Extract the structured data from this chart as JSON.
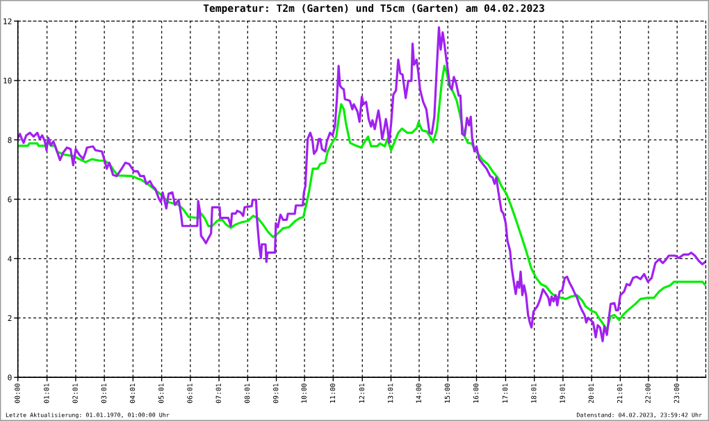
{
  "chart_data": {
    "type": "line",
    "title": "Temperatur: T2m (Garten) und T5cm (Garten) am 04.02.2023",
    "grid": true,
    "marker": "none",
    "line_style": "solid",
    "xlim": [
      0,
      24
    ],
    "ylim": [
      0,
      12
    ],
    "yticks": [
      0,
      2,
      4,
      6,
      8,
      10,
      12
    ],
    "xticks": [
      {
        "value": 0,
        "label": "00:00"
      },
      {
        "value": 1.017,
        "label": "01:01"
      },
      {
        "value": 2.017,
        "label": "02:01"
      },
      {
        "value": 3.017,
        "label": "03:01"
      },
      {
        "value": 4.017,
        "label": "04:01"
      },
      {
        "value": 5.017,
        "label": "05:01"
      },
      {
        "value": 6.017,
        "label": "06:01"
      },
      {
        "value": 7.017,
        "label": "07:01"
      },
      {
        "value": 8.017,
        "label": "08:01"
      },
      {
        "value": 9.017,
        "label": "09:01"
      },
      {
        "value": 10,
        "label": "10:00"
      },
      {
        "value": 11,
        "label": "11:00"
      },
      {
        "value": 12.017,
        "label": "12:01"
      },
      {
        "value": 13.017,
        "label": "13:01"
      },
      {
        "value": 14,
        "label": "14:00"
      },
      {
        "value": 15,
        "label": "15:00"
      },
      {
        "value": 16,
        "label": "16:00"
      },
      {
        "value": 17.017,
        "label": "17:01"
      },
      {
        "value": 18.017,
        "label": "18:01"
      },
      {
        "value": 19.017,
        "label": "19:01"
      },
      {
        "value": 20.017,
        "label": "20:01"
      },
      {
        "value": 21.017,
        "label": "21:01"
      },
      {
        "value": 22,
        "label": "22:00"
      },
      {
        "value": 23,
        "label": "23:00"
      }
    ],
    "annotations": [
      "Letzte Aktualisierung: 01.01.1970, 01:00:00 Uhr",
      "Datenstand: 04.02.2023, 23:59:42 Uhr"
    ],
    "series": [
      {
        "color": "#00ee00",
        "x": [
          0,
          0.35,
          0.4,
          0.68,
          0.72,
          0.95,
          0.98,
          1.1,
          1.15,
          1.3,
          1.37,
          1.63,
          1.97,
          2.15,
          2.36,
          2.58,
          2.84,
          3.01,
          3.19,
          3.36,
          3.49,
          3.97,
          4.1,
          4.31,
          4.57,
          4.74,
          5.0,
          5.26,
          5.61,
          5.78,
          5.96,
          6.3,
          6.39,
          6.52,
          6.65,
          6.78,
          6.95,
          7.13,
          7.26,
          7.43,
          7.6,
          7.82,
          8.03,
          8.21,
          8.38,
          8.55,
          8.73,
          8.9,
          9.03,
          9.25,
          9.46,
          9.68,
          9.85,
          9.96,
          10.07,
          10.16,
          10.29,
          10.46,
          10.55,
          10.72,
          10.81,
          10.94,
          11.02,
          11.11,
          11.19,
          11.28,
          11.37,
          11.45,
          11.59,
          11.76,
          11.98,
          12.11,
          12.22,
          12.32,
          12.54,
          12.63,
          12.8,
          12.89,
          13.02,
          13.15,
          13.27,
          13.4,
          13.58,
          13.75,
          13.92,
          13.98,
          14.1,
          14.27,
          14.49,
          14.62,
          14.7,
          14.79,
          14.88,
          14.96,
          15.05,
          15.18,
          15.31,
          15.44,
          15.57,
          15.7,
          15.83,
          15.96,
          16.09,
          16.22,
          16.39,
          16.56,
          16.74,
          16.87,
          17.04,
          17.21,
          17.39,
          17.56,
          17.73,
          17.91,
          18.08,
          18.25,
          18.43,
          18.6,
          18.77,
          18.95,
          19.12,
          19.29,
          19.51,
          19.68,
          19.81,
          19.98,
          20.16,
          20.29,
          20.42,
          20.55,
          20.68,
          20.81,
          20.98,
          21.11,
          21.28,
          21.54,
          21.72,
          21.98,
          22.19,
          22.37,
          22.54,
          22.76,
          22.89,
          23.62,
          23.88,
          23.97
        ],
        "values": [
          7.8,
          7.8,
          7.88,
          7.88,
          7.8,
          7.8,
          7.88,
          7.88,
          7.8,
          7.8,
          7.6,
          7.5,
          7.45,
          7.35,
          7.25,
          7.35,
          7.3,
          7.3,
          7.2,
          6.95,
          6.8,
          6.78,
          6.73,
          6.65,
          6.48,
          6.36,
          6.15,
          5.9,
          5.81,
          5.65,
          5.4,
          5.37,
          5.52,
          5.36,
          5.09,
          5.1,
          5.27,
          5.31,
          5.15,
          5.04,
          5.15,
          5.23,
          5.27,
          5.44,
          5.36,
          5.15,
          4.9,
          4.73,
          4.81,
          5.02,
          5.06,
          5.27,
          5.37,
          5.4,
          5.86,
          6.27,
          7.03,
          7.03,
          7.19,
          7.23,
          7.61,
          7.86,
          7.99,
          8.11,
          8.7,
          9.2,
          9.03,
          8.53,
          7.9,
          7.82,
          7.74,
          7.95,
          8.11,
          7.79,
          7.79,
          7.88,
          7.78,
          8.03,
          7.65,
          7.95,
          8.24,
          8.38,
          8.24,
          8.24,
          8.4,
          8.6,
          8.32,
          8.28,
          7.93,
          8.36,
          9.11,
          9.95,
          10.49,
          10.28,
          9.82,
          9.62,
          9.32,
          8.78,
          8.15,
          7.9,
          7.88,
          7.65,
          7.49,
          7.32,
          7.19,
          6.94,
          6.73,
          6.44,
          6.19,
          5.77,
          5.27,
          4.77,
          4.27,
          3.68,
          3.35,
          3.14,
          3.06,
          2.85,
          2.72,
          2.68,
          2.64,
          2.72,
          2.77,
          2.6,
          2.39,
          2.26,
          2.18,
          1.97,
          1.8,
          1.6,
          2.06,
          2.1,
          1.93,
          2.1,
          2.26,
          2.47,
          2.64,
          2.68,
          2.68,
          2.89,
          3.02,
          3.1,
          3.22,
          3.22,
          3.22,
          3.12
        ]
      },
      {
        "color": "#a020f0",
        "x": [
          0,
          0.07,
          0.14,
          0.2,
          0.29,
          0.42,
          0.55,
          0.68,
          0.76,
          0.85,
          0.94,
          1.0,
          1.06,
          1.15,
          1.24,
          1.32,
          1.47,
          1.58,
          1.71,
          1.84,
          1.93,
          2.02,
          2.15,
          2.28,
          2.36,
          2.41,
          2.62,
          2.71,
          2.93,
          3.01,
          3.1,
          3.19,
          3.32,
          3.45,
          3.62,
          3.75,
          3.88,
          4.05,
          4.18,
          4.27,
          4.4,
          4.48,
          4.61,
          4.7,
          4.79,
          4.92,
          4.99,
          5.05,
          5.18,
          5.26,
          5.39,
          5.48,
          5.61,
          5.7,
          5.74,
          6.26,
          6.29,
          6.35,
          6.39,
          6.48,
          6.56,
          6.65,
          6.74,
          6.78,
          7.04,
          7.06,
          7.34,
          7.43,
          7.47,
          7.6,
          7.65,
          7.77,
          7.86,
          7.91,
          8.16,
          8.19,
          8.31,
          8.34,
          8.42,
          8.48,
          8.51,
          8.64,
          8.67,
          8.71,
          8.97,
          9.0,
          9.07,
          9.16,
          9.25,
          9.38,
          9.42,
          9.66,
          9.7,
          9.94,
          9.98,
          10.03,
          10.11,
          10.2,
          10.27,
          10.33,
          10.42,
          10.5,
          10.55,
          10.61,
          10.72,
          10.78,
          10.89,
          10.98,
          11.06,
          11.13,
          11.19,
          11.24,
          11.31,
          11.37,
          11.41,
          11.58,
          11.67,
          11.72,
          11.85,
          11.92,
          12.0,
          12.06,
          12.15,
          12.24,
          12.32,
          12.37,
          12.45,
          12.52,
          12.58,
          12.64,
          12.71,
          12.78,
          12.84,
          12.9,
          12.95,
          13.02,
          13.1,
          13.19,
          13.27,
          13.34,
          13.42,
          13.53,
          13.62,
          13.73,
          13.77,
          13.82,
          13.91,
          13.97,
          14.03,
          14.14,
          14.25,
          14.36,
          14.44,
          14.53,
          14.62,
          14.69,
          14.75,
          14.82,
          14.88,
          14.95,
          15.01,
          15.07,
          15.14,
          15.21,
          15.29,
          15.38,
          15.44,
          15.5,
          15.59,
          15.67,
          15.74,
          15.8,
          15.85,
          15.93,
          16.0,
          16.09,
          16.22,
          16.35,
          16.48,
          16.56,
          16.63,
          16.69,
          16.76,
          16.87,
          16.94,
          17.02,
          17.08,
          17.17,
          17.23,
          17.32,
          17.37,
          17.43,
          17.49,
          17.54,
          17.6,
          17.66,
          17.73,
          17.8,
          17.86,
          17.92,
          17.99,
          18.12,
          18.21,
          18.32,
          18.43,
          18.51,
          18.56,
          18.62,
          18.69,
          18.76,
          18.82,
          18.9,
          18.99,
          19.08,
          19.16,
          19.25,
          19.34,
          19.42,
          19.51,
          19.6,
          19.68,
          19.77,
          19.83,
          19.9,
          19.98,
          20.07,
          20.16,
          20.23,
          20.31,
          20.4,
          20.46,
          20.55,
          20.61,
          20.68,
          20.81,
          20.87,
          20.94,
          21.02,
          21.15,
          21.24,
          21.35,
          21.46,
          21.59,
          21.72,
          21.85,
          21.98,
          22.11,
          22.24,
          22.37,
          22.5,
          22.58,
          22.71,
          22.93,
          23.06,
          23.23,
          23.4,
          23.49,
          23.62,
          23.75,
          23.88,
          23.98
        ],
        "values": [
          8.07,
          8.2,
          8.03,
          7.9,
          8.15,
          8.24,
          8.11,
          8.24,
          8.03,
          8.15,
          7.95,
          7.65,
          8.07,
          7.82,
          7.95,
          7.74,
          7.32,
          7.57,
          7.74,
          7.69,
          7.15,
          7.69,
          7.49,
          7.36,
          7.57,
          7.74,
          7.78,
          7.65,
          7.61,
          7.36,
          7.03,
          7.23,
          6.82,
          6.78,
          7.03,
          7.23,
          7.19,
          6.94,
          6.94,
          6.78,
          6.78,
          6.52,
          6.61,
          6.44,
          6.36,
          6.02,
          5.9,
          6.23,
          5.69,
          6.19,
          6.23,
          5.81,
          5.98,
          5.44,
          5.1,
          5.1,
          5.94,
          5.61,
          4.77,
          4.65,
          4.52,
          4.69,
          4.85,
          5.73,
          5.73,
          5.37,
          5.37,
          5.1,
          5.52,
          5.52,
          5.61,
          5.56,
          5.44,
          5.73,
          5.77,
          5.98,
          5.98,
          5.36,
          4.44,
          4.02,
          4.48,
          4.48,
          3.89,
          4.2,
          4.2,
          5.19,
          5.06,
          5.48,
          5.31,
          5.31,
          5.51,
          5.51,
          5.79,
          5.79,
          6.23,
          6.44,
          8.03,
          8.24,
          8.03,
          7.53,
          7.65,
          8.03,
          8.03,
          7.69,
          7.61,
          7.95,
          8.24,
          8.15,
          8.45,
          9.37,
          10.49,
          9.82,
          9.74,
          9.7,
          9.37,
          9.32,
          9.03,
          9.2,
          8.95,
          8.61,
          9.45,
          9.2,
          9.28,
          8.7,
          8.45,
          8.66,
          8.36,
          8.7,
          8.99,
          8.61,
          8.03,
          8.36,
          8.7,
          8.36,
          7.9,
          8.53,
          9.53,
          9.66,
          10.7,
          10.24,
          10.2,
          9.41,
          9.99,
          9.99,
          11.24,
          10.53,
          10.7,
          10.28,
          9.7,
          9.28,
          9.03,
          8.24,
          8.2,
          8.78,
          10.53,
          11.79,
          11.04,
          11.62,
          11.24,
          10.7,
          10.28,
          9.82,
          9.7,
          10.12,
          9.91,
          9.49,
          9.49,
          8.2,
          8.15,
          8.74,
          8.49,
          8.78,
          8.03,
          7.61,
          7.78,
          7.36,
          7.19,
          7.03,
          6.78,
          6.73,
          6.52,
          6.73,
          6.27,
          5.61,
          5.52,
          5.19,
          4.6,
          4.27,
          3.68,
          3.1,
          2.81,
          3.22,
          3.02,
          3.56,
          2.77,
          3.1,
          2.77,
          2.1,
          1.85,
          1.68,
          2.22,
          2.39,
          2.6,
          2.97,
          2.81,
          2.68,
          2.43,
          2.72,
          2.56,
          2.77,
          2.43,
          2.89,
          2.93,
          3.35,
          3.39,
          3.18,
          3.02,
          2.85,
          2.68,
          2.43,
          2.26,
          2.1,
          1.85,
          2.01,
          1.93,
          1.85,
          1.35,
          1.76,
          1.68,
          1.22,
          1.72,
          1.43,
          1.93,
          2.47,
          2.5,
          2.26,
          2.26,
          2.77,
          2.89,
          3.14,
          3.1,
          3.35,
          3.39,
          3.31,
          3.48,
          3.22,
          3.35,
          3.85,
          3.98,
          3.85,
          3.93,
          4.1,
          4.1,
          4.02,
          4.14,
          4.14,
          4.2,
          4.1,
          3.93,
          3.81,
          3.89
        ]
      }
    ]
  }
}
